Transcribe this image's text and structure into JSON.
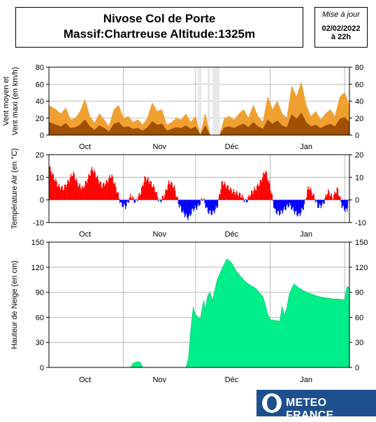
{
  "header": {
    "title_line1": "Nivose Col de Porte",
    "title_line2": "Massif:Chartreuse Altitude:1325m",
    "update_label": "Mise à jour",
    "update_date": "02/02/2022",
    "update_time": "à 22h"
  },
  "logo": {
    "text": "METEO FRANCE"
  },
  "chart_data": [
    {
      "type": "area",
      "id": "wind",
      "ylabel_line1": "Vent moyen et",
      "ylabel_line2": "Vent maxi (en km/h)",
      "ylim": [
        0,
        80
      ],
      "yticks": [
        0,
        20,
        40,
        60,
        80
      ],
      "x_range_days": [
        0,
        125
      ],
      "month_labels": [
        {
          "label": "Oct",
          "day": 15
        },
        {
          "label": "Nov",
          "day": 46
        },
        {
          "label": "Déc",
          "day": 76
        },
        {
          "label": "Jan",
          "day": 107
        }
      ],
      "month_boundaries": [
        0,
        31,
        61,
        92,
        123
      ],
      "series": [
        {
          "role": "maxi",
          "color": "#f0a030"
        },
        {
          "role": "moyen",
          "color": "#a05000"
        }
      ],
      "missing_data": [
        [
          62,
          63.5
        ],
        [
          66,
          67
        ],
        [
          68,
          71
        ]
      ],
      "x": [
        0,
        3,
        5,
        7,
        9,
        11,
        13,
        15,
        17,
        19,
        21,
        23,
        25,
        27,
        29,
        31,
        33,
        35,
        37,
        39,
        41,
        43,
        45,
        47,
        49,
        51,
        53,
        55,
        57,
        59,
        61,
        63,
        65,
        67,
        69,
        71,
        73,
        75,
        77,
        79,
        81,
        83,
        85,
        87,
        89,
        91,
        93,
        95,
        97,
        99,
        101,
        103,
        105,
        107,
        109,
        111,
        113,
        115,
        117,
        119,
        121,
        123,
        125
      ],
      "maxi": [
        35,
        30,
        25,
        32,
        18,
        20,
        28,
        42,
        22,
        14,
        25,
        18,
        10,
        30,
        35,
        20,
        22,
        15,
        18,
        12,
        20,
        38,
        28,
        30,
        12,
        15,
        20,
        18,
        25,
        15,
        22,
        0,
        25,
        0,
        0,
        0,
        20,
        22,
        18,
        25,
        30,
        20,
        35,
        22,
        15,
        45,
        30,
        40,
        25,
        20,
        58,
        45,
        62,
        35,
        22,
        28,
        18,
        25,
        30,
        22,
        45,
        50,
        35
      ],
      "moyen": [
        15,
        12,
        10,
        14,
        8,
        9,
        12,
        18,
        10,
        6,
        11,
        8,
        4,
        13,
        15,
        9,
        10,
        7,
        8,
        5,
        9,
        16,
        12,
        13,
        5,
        7,
        9,
        8,
        11,
        7,
        10,
        0,
        11,
        0,
        0,
        0,
        9,
        10,
        8,
        11,
        13,
        9,
        15,
        10,
        7,
        18,
        13,
        17,
        11,
        9,
        24,
        19,
        26,
        15,
        10,
        12,
        8,
        11,
        13,
        10,
        19,
        21,
        15
      ]
    },
    {
      "type": "bar",
      "id": "temperature",
      "ylabel": "Température Air (en °C)",
      "ylim": [
        -10,
        20
      ],
      "yticks": [
        -10,
        0,
        10,
        20
      ],
      "x_range_days": [
        0,
        125
      ],
      "month_labels": [
        {
          "label": "Oct",
          "day": 15
        },
        {
          "label": "Nov",
          "day": 46
        },
        {
          "label": "Déc",
          "day": 76
        },
        {
          "label": "Jan",
          "day": 107
        }
      ],
      "month_boundaries": [
        0,
        31,
        61,
        92,
        123
      ],
      "positive_color": "#ff0000",
      "negative_color": "#0000ff",
      "x": [
        0,
        2,
        4,
        6,
        8,
        10,
        12,
        14,
        16,
        18,
        20,
        22,
        24,
        26,
        28,
        30,
        32,
        34,
        36,
        38,
        40,
        42,
        44,
        46,
        48,
        50,
        52,
        54,
        56,
        58,
        60,
        62,
        64,
        66,
        68,
        70,
        72,
        74,
        76,
        78,
        80,
        82,
        84,
        86,
        88,
        90,
        92,
        94,
        96,
        98,
        100,
        102,
        104,
        106,
        108,
        110,
        112,
        114,
        116,
        118,
        120,
        122,
        124,
        125
      ],
      "values": [
        15,
        10,
        6,
        5,
        8,
        12,
        7,
        5,
        9,
        14,
        10,
        6,
        8,
        11,
        5,
        -2,
        -3,
        2,
        -1,
        3,
        10,
        8,
        5,
        -1,
        2,
        8,
        6,
        -2,
        -6,
        -8,
        -4,
        -3,
        1,
        -5,
        -6,
        -3,
        8,
        6,
        4,
        3,
        2,
        -1,
        3,
        5,
        8,
        13,
        6,
        -5,
        -6,
        -4,
        -2,
        -5,
        -7,
        -3,
        6,
        2,
        -3,
        -2,
        4,
        1,
        5,
        -3,
        -5,
        3
      ]
    },
    {
      "type": "area",
      "id": "snow",
      "ylabel": "Hauteur de Neige (en cm)",
      "ylim": [
        0,
        150
      ],
      "yticks": [
        0,
        30,
        60,
        90,
        120,
        150
      ],
      "x_range_days": [
        0,
        125
      ],
      "month_labels": [
        {
          "label": "Oct",
          "day": 15
        },
        {
          "label": "Nov",
          "day": 46
        },
        {
          "label": "Déc",
          "day": 76
        },
        {
          "label": "Jan",
          "day": 107
        }
      ],
      "month_boundaries": [
        0,
        31,
        61,
        92,
        123
      ],
      "color": "#00ee88",
      "x": [
        0,
        34,
        35,
        37,
        38,
        39,
        57,
        58,
        59,
        60,
        61,
        62,
        63,
        64,
        64.5,
        65,
        66,
        67,
        68,
        70,
        72,
        74,
        76,
        78,
        80,
        82,
        84,
        86,
        88,
        89,
        90,
        91,
        92,
        93,
        94,
        95,
        96,
        97,
        98,
        99,
        100,
        101,
        102,
        104,
        106,
        108,
        110,
        112,
        114,
        116,
        118,
        120,
        122,
        123,
        124,
        125
      ],
      "values": [
        0,
        0,
        5,
        7,
        6,
        0,
        0,
        10,
        45,
        72,
        63,
        60,
        58,
        75,
        80,
        68,
        86,
        90,
        80,
        105,
        118,
        130,
        125,
        115,
        108,
        102,
        98,
        95,
        88,
        85,
        75,
        64,
        57,
        57,
        56,
        56,
        55,
        73,
        62,
        72,
        88,
        95,
        100,
        95,
        92,
        89,
        87,
        85,
        84,
        83,
        82,
        82,
        81,
        81,
        97,
        95
      ]
    }
  ]
}
